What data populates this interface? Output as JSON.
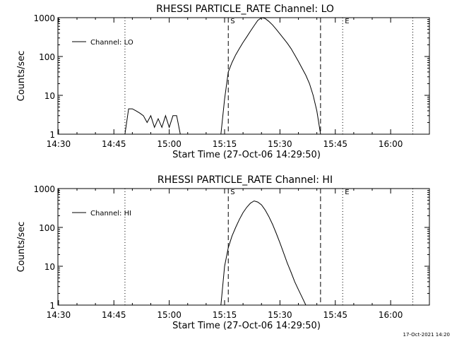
{
  "footer": {
    "timestamp": "17-Oct-2021 14:20"
  },
  "chart_data": [
    {
      "type": "line",
      "title": "RHESSI PARTICLE_RATE Channel: LO",
      "xlabel": "Start Time (27-Oct-06 14:29:50)",
      "ylabel": "Counts/sec",
      "yscale": "log",
      "ylim": [
        1,
        1000
      ],
      "xlim": [
        "14:29:50",
        "16:10:30"
      ],
      "xtick_labels": [
        "14:30",
        "14:45",
        "15:00",
        "15:15",
        "15:30",
        "15:45",
        "16:00"
      ],
      "ytick_labels": [
        "1",
        "10",
        "100",
        "1000"
      ],
      "grid": false,
      "legend": {
        "position": "top-left",
        "entries": [
          "Channel: LO"
        ]
      },
      "markers": [
        {
          "label": "S",
          "time": "15:16",
          "style": "dashed"
        },
        {
          "label": "",
          "time": "15:41",
          "style": "dashed"
        },
        {
          "label": "E",
          "time": "15:47",
          "style": "dotted"
        },
        {
          "label": "",
          "time": "14:48",
          "style": "dotted"
        },
        {
          "label": "",
          "time": "16:06",
          "style": "dotted"
        }
      ],
      "series": [
        {
          "name": "Channel: LO",
          "segments": [
            {
              "x": [
                "14:48",
                "14:49",
                "14:50",
                "14:51",
                "14:52",
                "14:53",
                "14:54",
                "14:55",
                "14:56",
                "14:57",
                "14:58",
                "14:59",
                "15:00",
                "15:01",
                "15:02",
                "15:03"
              ],
              "y": [
                1,
                4.5,
                4.5,
                4,
                3.5,
                3,
                2,
                3,
                1.5,
                2.5,
                1.5,
                3,
                1.5,
                3,
                3,
                1
              ]
            },
            {
              "x": [
                "15:14",
                "15:15",
                "15:16",
                "15:17",
                "15:18",
                "15:19",
                "15:20",
                "15:21",
                "15:22",
                "15:23",
                "15:24",
                "15:25",
                "15:26",
                "15:27",
                "15:28",
                "15:29",
                "15:30",
                "15:31",
                "15:32",
                "15:33",
                "15:34",
                "15:35",
                "15:36",
                "15:37",
                "15:38",
                "15:39",
                "15:40",
                "15:41"
              ],
              "y": [
                1,
                8,
                40,
                70,
                110,
                160,
                230,
                320,
                450,
                620,
                850,
                1000,
                950,
                800,
                650,
                500,
                380,
                290,
                220,
                160,
                110,
                75,
                50,
                33,
                20,
                10,
                4,
                1
              ]
            }
          ]
        }
      ]
    },
    {
      "type": "line",
      "title": "RHESSI PARTICLE_RATE Channel: HI",
      "xlabel": "Start Time (27-Oct-06 14:29:50)",
      "ylabel": "Counts/sec",
      "yscale": "log",
      "ylim": [
        1,
        1000
      ],
      "xlim": [
        "14:29:50",
        "16:10:30"
      ],
      "xtick_labels": [
        "14:30",
        "14:45",
        "15:00",
        "15:15",
        "15:30",
        "15:45",
        "16:00"
      ],
      "ytick_labels": [
        "1",
        "10",
        "100",
        "1000"
      ],
      "grid": false,
      "legend": {
        "position": "top-left",
        "entries": [
          "Channel: HI"
        ]
      },
      "markers": [
        {
          "label": "S",
          "time": "15:16",
          "style": "dashed"
        },
        {
          "label": "",
          "time": "15:41",
          "style": "dashed"
        },
        {
          "label": "E",
          "time": "15:47",
          "style": "dotted"
        },
        {
          "label": "",
          "time": "14:48",
          "style": "dotted"
        },
        {
          "label": "",
          "time": "16:06",
          "style": "dotted"
        }
      ],
      "series": [
        {
          "name": "Channel: HI",
          "segments": [
            {
              "x": [
                "15:14",
                "15:15",
                "15:16",
                "15:17",
                "15:18",
                "15:19",
                "15:20",
                "15:21",
                "15:22",
                "15:23",
                "15:24",
                "15:25",
                "15:26",
                "15:27",
                "15:28",
                "15:29",
                "15:30",
                "15:31",
                "15:32",
                "15:33",
                "15:34",
                "15:35",
                "15:36",
                "15:37"
              ],
              "y": [
                1,
                10,
                30,
                60,
                100,
                160,
                240,
                330,
                420,
                480,
                450,
                380,
                280,
                190,
                120,
                70,
                40,
                22,
                12,
                7,
                4,
                2.5,
                1.6,
                1
              ]
            }
          ]
        }
      ]
    }
  ]
}
